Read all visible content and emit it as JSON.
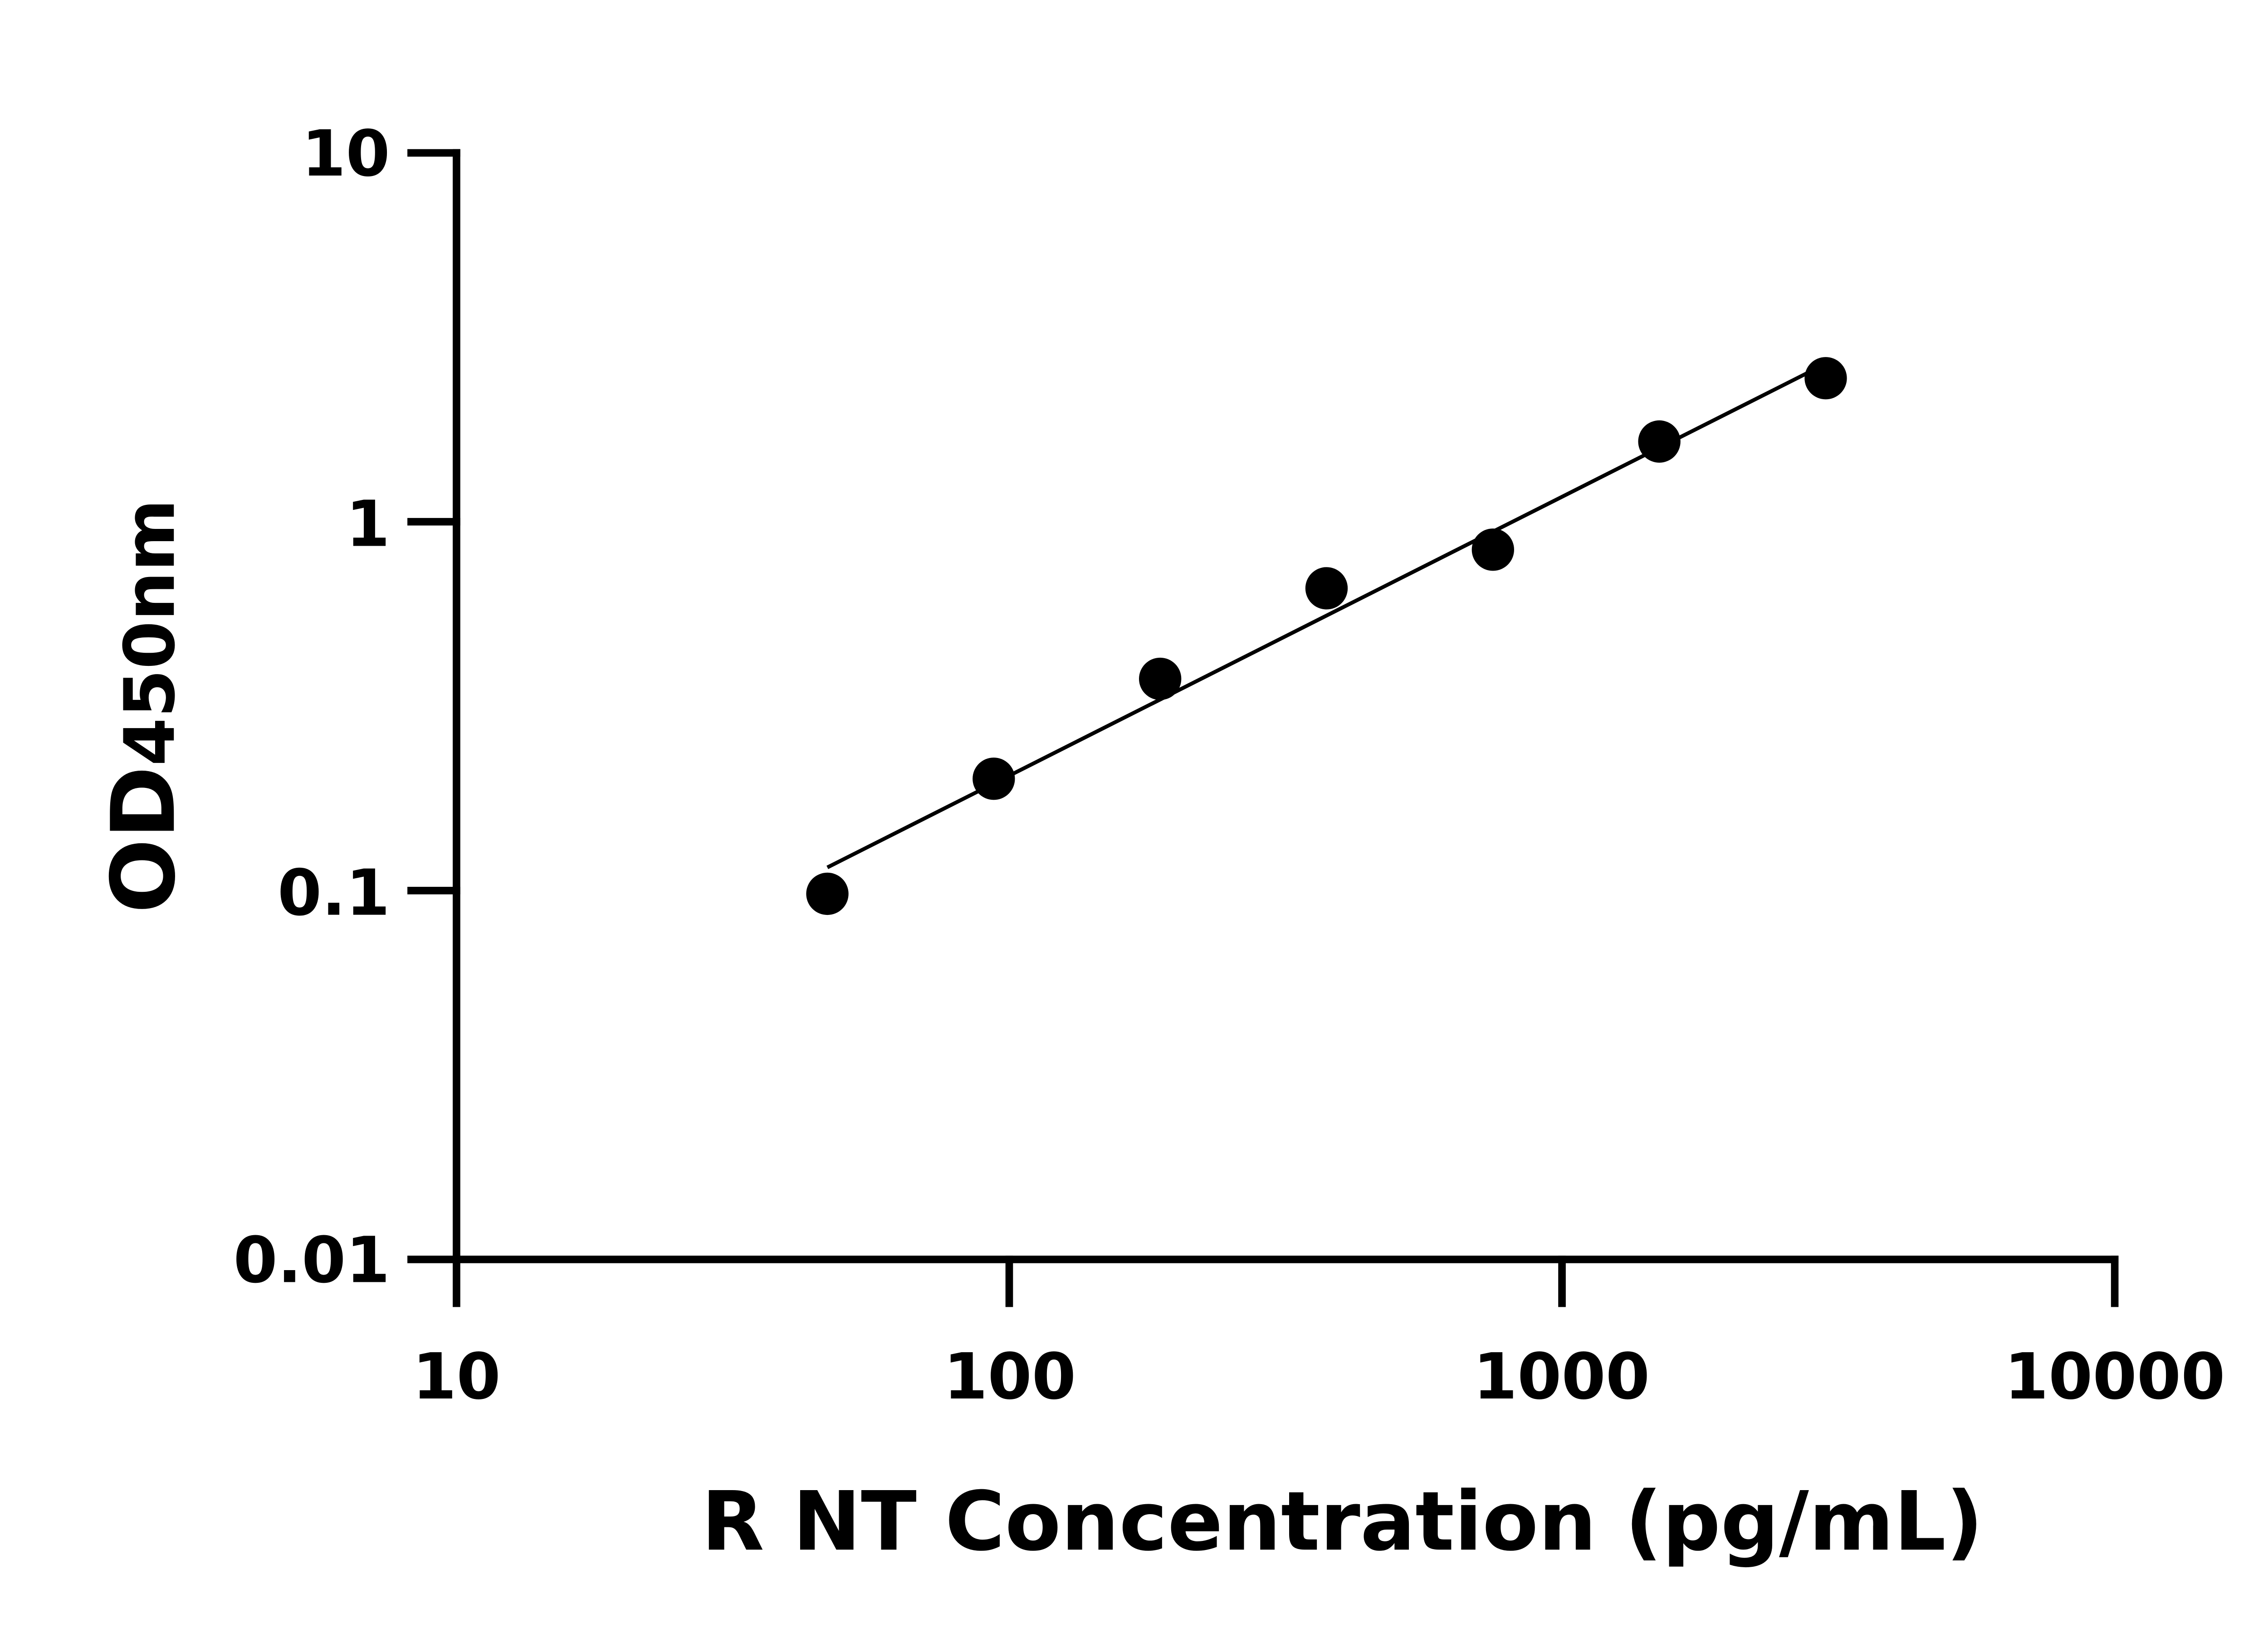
{
  "chart_data": {
    "type": "scatter",
    "title": "",
    "xlabel": "R NT Concentration (pg/mL)",
    "ylabel_main": "OD",
    "ylabel_sub": "450nm",
    "x_scale": "log",
    "y_scale": "log",
    "xlim": [
      10,
      10000
    ],
    "ylim": [
      0.01,
      10
    ],
    "x_ticks": [
      "10",
      "100",
      "1000",
      "10000"
    ],
    "y_ticks": [
      "0.01",
      "0.1",
      "1",
      "10"
    ],
    "grid": false,
    "legend": "none",
    "marker_color": "#000000",
    "fit_line": "straight line fit on log-log axes",
    "x": [
      46.875,
      93.75,
      187.5,
      375,
      750,
      1500,
      3000
    ],
    "y": [
      0.098,
      0.201,
      0.375,
      0.66,
      0.84,
      1.65,
      2.45
    ]
  }
}
